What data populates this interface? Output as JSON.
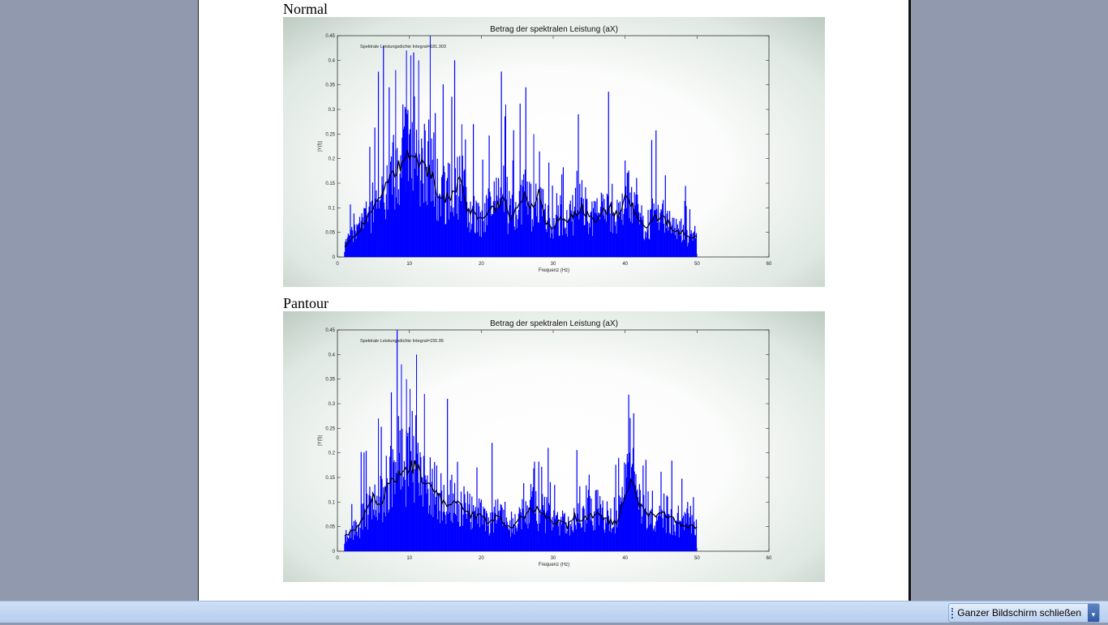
{
  "document": {
    "sections": [
      {
        "heading": "Normal"
      },
      {
        "heading": "Pantour"
      }
    ]
  },
  "statusbar": {
    "close_fullscreen_label": "Ganzer Bildschirm schließen"
  },
  "colors": {
    "bars": "#0000ff",
    "smooth": "#000000",
    "background": "#9099ae"
  },
  "chart_data": [
    {
      "type": "bar",
      "title": "Betrag der spektralen Leistung (aX)",
      "xlabel": "Frequenz (Hz)",
      "ylabel": "|Y(f)|",
      "annotation": "Spektrale Leistungsdichte    Integral=181.303",
      "xlim": [
        0,
        60
      ],
      "ylim": [
        0,
        0.45
      ],
      "xticks": [
        "0",
        "10",
        "20",
        "30",
        "40",
        "50",
        "60"
      ],
      "yticks": [
        "0",
        "0.05",
        "0.1",
        "0.15",
        "0.2",
        "0.25",
        "0.3",
        "0.35",
        "0.4",
        "0.45"
      ],
      "freq_hz_start": 1,
      "smoothed": [
        0.02,
        0.04,
        0.05,
        0.08,
        0.1,
        0.12,
        0.15,
        0.18,
        0.19,
        0.22,
        0.2,
        0.19,
        0.17,
        0.12,
        0.12,
        0.13,
        0.15,
        0.1,
        0.09,
        0.08,
        0.09,
        0.1,
        0.12,
        0.08,
        0.1,
        0.12,
        0.1,
        0.13,
        0.07,
        0.06,
        0.08,
        0.07,
        0.09,
        0.1,
        0.08,
        0.07,
        0.09,
        0.1,
        0.08,
        0.12,
        0.1,
        0.07,
        0.06,
        0.08,
        0.08,
        0.07,
        0.05,
        0.05,
        0.04,
        0.04
      ],
      "peaks": [
        [
          9.6,
          0.42
        ],
        [
          10.2,
          0.41
        ],
        [
          12.9,
          0.45
        ],
        [
          11.3,
          0.4
        ],
        [
          8.1,
          0.38
        ],
        [
          23.4,
          0.31
        ],
        [
          17.3,
          0.27
        ],
        [
          27.3,
          0.25
        ]
      ]
    },
    {
      "type": "bar",
      "title": "Betrag der spektralen Leistung (aX)",
      "xlabel": "Frequenz (Hz)",
      "ylabel": "|Y(f)|",
      "annotation": "Spektrale Leistungsdichte    Integral=155.95",
      "xlim": [
        0,
        60
      ],
      "ylim": [
        0,
        0.45
      ],
      "xticks": [
        "0",
        "10",
        "20",
        "30",
        "40",
        "50",
        "60"
      ],
      "yticks": [
        "0",
        "0.05",
        "0.1",
        "0.15",
        "0.2",
        "0.25",
        "0.3",
        "0.35",
        "0.4",
        "0.45"
      ],
      "freq_hz_start": 1,
      "smoothed": [
        0.03,
        0.04,
        0.05,
        0.08,
        0.11,
        0.1,
        0.13,
        0.15,
        0.17,
        0.17,
        0.18,
        0.14,
        0.13,
        0.11,
        0.1,
        0.1,
        0.09,
        0.08,
        0.07,
        0.07,
        0.06,
        0.07,
        0.06,
        0.05,
        0.06,
        0.07,
        0.09,
        0.08,
        0.07,
        0.06,
        0.06,
        0.05,
        0.07,
        0.06,
        0.07,
        0.08,
        0.07,
        0.06,
        0.06,
        0.12,
        0.15,
        0.09,
        0.08,
        0.07,
        0.08,
        0.07,
        0.06,
        0.05,
        0.05,
        0.05
      ],
      "peaks": [
        [
          11.0,
          0.4
        ],
        [
          8.9,
          0.38
        ],
        [
          9.6,
          0.35
        ],
        [
          10.1,
          0.33
        ],
        [
          12.1,
          0.32
        ],
        [
          5.7,
          0.27
        ],
        [
          41.1,
          0.21
        ],
        [
          40.3,
          0.19
        ]
      ]
    }
  ]
}
